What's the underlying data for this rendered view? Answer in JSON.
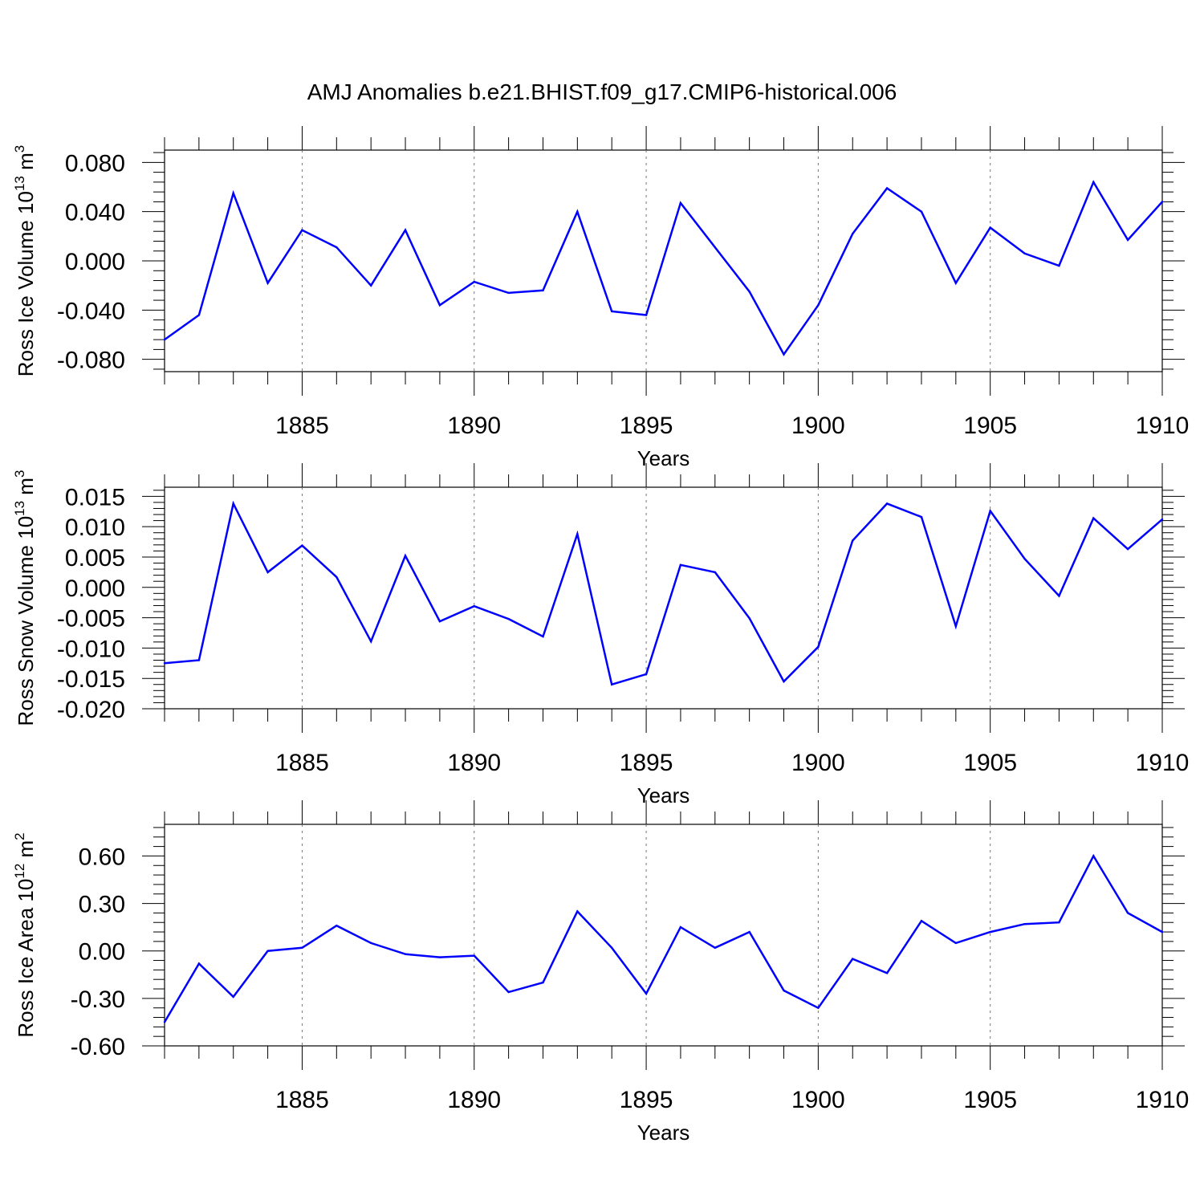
{
  "figure_title": "AMJ Anomalies b.e21.BHIST.f09_g17.CMIP6-historical.006",
  "line_color": "#0000ff",
  "chart_data": [
    {
      "type": "line",
      "title": "AMJ Anomalies b.e21.BHIST.f09_g17.CMIP6-historical.006",
      "xlabel": "Years",
      "ylabel": {
        "base": "Ross Ice Volume 10",
        "exp": "13",
        "unit": " m",
        "unit_exp": "3"
      },
      "xlim": [
        1881,
        1910
      ],
      "ylim": [
        -0.09,
        0.09
      ],
      "xticks": [
        1885,
        1890,
        1895,
        1900,
        1905,
        1910
      ],
      "xtick_labels": [
        "1885",
        "1890",
        "1895",
        "1900",
        "1905",
        "1910"
      ],
      "yticks": [
        -0.08,
        -0.04,
        0.0,
        0.04,
        0.08
      ],
      "ytick_labels": [
        "-0.080",
        "-0.040",
        "0.000",
        "0.040",
        "0.080"
      ],
      "grid": "dashed vertical at major x ticks",
      "x": [
        1881,
        1882,
        1883,
        1884,
        1885,
        1886,
        1887,
        1888,
        1889,
        1890,
        1891,
        1892,
        1893,
        1894,
        1895,
        1896,
        1897,
        1898,
        1899,
        1900,
        1901,
        1902,
        1903,
        1904,
        1905,
        1906,
        1907,
        1908,
        1909,
        1910
      ],
      "series": [
        {
          "name": "Ross Ice Volume",
          "values": [
            -0.064,
            -0.044,
            0.055,
            -0.018,
            0.025,
            0.011,
            -0.02,
            0.025,
            -0.036,
            -0.017,
            -0.026,
            -0.024,
            0.04,
            -0.041,
            -0.044,
            0.047,
            0.011,
            -0.025,
            -0.076,
            -0.036,
            0.022,
            0.059,
            0.04,
            -0.018,
            0.027,
            0.006,
            -0.004,
            0.064,
            0.017,
            0.048
          ]
        }
      ]
    },
    {
      "type": "line",
      "xlabel": "Years",
      "ylabel": {
        "base": "Ross Snow Volume 10",
        "exp": "13",
        "unit": " m",
        "unit_exp": "3"
      },
      "xlim": [
        1881,
        1910
      ],
      "ylim": [
        -0.02,
        0.0165
      ],
      "xticks": [
        1885,
        1890,
        1895,
        1900,
        1905,
        1910
      ],
      "xtick_labels": [
        "1885",
        "1890",
        "1895",
        "1900",
        "1905",
        "1910"
      ],
      "yticks": [
        -0.02,
        -0.015,
        -0.01,
        -0.005,
        0.0,
        0.005,
        0.01,
        0.015
      ],
      "ytick_labels": [
        "-0.020",
        "-0.015",
        "-0.010",
        "-0.005",
        "0.000",
        "0.005",
        "0.010",
        "0.015"
      ],
      "grid": "dashed vertical at major x ticks",
      "x": [
        1881,
        1882,
        1883,
        1884,
        1885,
        1886,
        1887,
        1888,
        1889,
        1890,
        1891,
        1892,
        1893,
        1894,
        1895,
        1896,
        1897,
        1898,
        1899,
        1900,
        1901,
        1902,
        1903,
        1904,
        1905,
        1906,
        1907,
        1908,
        1909,
        1910
      ],
      "series": [
        {
          "name": "Ross Snow Volume",
          "values": [
            -0.0125,
            -0.012,
            0.0138,
            0.0025,
            0.0069,
            0.0017,
            -0.0089,
            0.0052,
            -0.0056,
            -0.0031,
            -0.0052,
            -0.0081,
            0.0088,
            -0.016,
            -0.0143,
            0.0037,
            0.0025,
            -0.0051,
            -0.0155,
            -0.0098,
            0.0077,
            0.0138,
            0.0116,
            -0.0064,
            0.0126,
            0.0047,
            -0.0014,
            0.0114,
            0.0063,
            0.0112
          ]
        }
      ]
    },
    {
      "type": "line",
      "xlabel": "Years",
      "ylabel": {
        "base": "Ross Ice Area 10",
        "exp": "12",
        "unit": " m",
        "unit_exp": "2"
      },
      "xlim": [
        1881,
        1910
      ],
      "ylim": [
        -0.6,
        0.8
      ],
      "xticks": [
        1885,
        1890,
        1895,
        1900,
        1905,
        1910
      ],
      "xtick_labels": [
        "1885",
        "1890",
        "1895",
        "1900",
        "1905",
        "1910"
      ],
      "yticks": [
        -0.6,
        -0.3,
        0.0,
        0.3,
        0.6
      ],
      "ytick_labels": [
        "-0.60",
        "-0.30",
        "0.00",
        "0.30",
        "0.60"
      ],
      "grid": "dashed vertical at major x ticks",
      "x": [
        1881,
        1882,
        1883,
        1884,
        1885,
        1886,
        1887,
        1888,
        1889,
        1890,
        1891,
        1892,
        1893,
        1894,
        1895,
        1896,
        1897,
        1898,
        1899,
        1900,
        1901,
        1902,
        1903,
        1904,
        1905,
        1906,
        1907,
        1908,
        1909,
        1910
      ],
      "series": [
        {
          "name": "Ross Ice Area",
          "values": [
            -0.45,
            -0.08,
            -0.29,
            0.0,
            0.02,
            0.16,
            0.05,
            -0.02,
            -0.04,
            -0.03,
            -0.26,
            -0.2,
            0.25,
            0.02,
            -0.27,
            0.15,
            0.02,
            0.12,
            -0.25,
            -0.36,
            -0.05,
            -0.14,
            0.19,
            0.05,
            0.12,
            0.17,
            0.18,
            0.6,
            0.24,
            0.12
          ]
        }
      ]
    }
  ]
}
